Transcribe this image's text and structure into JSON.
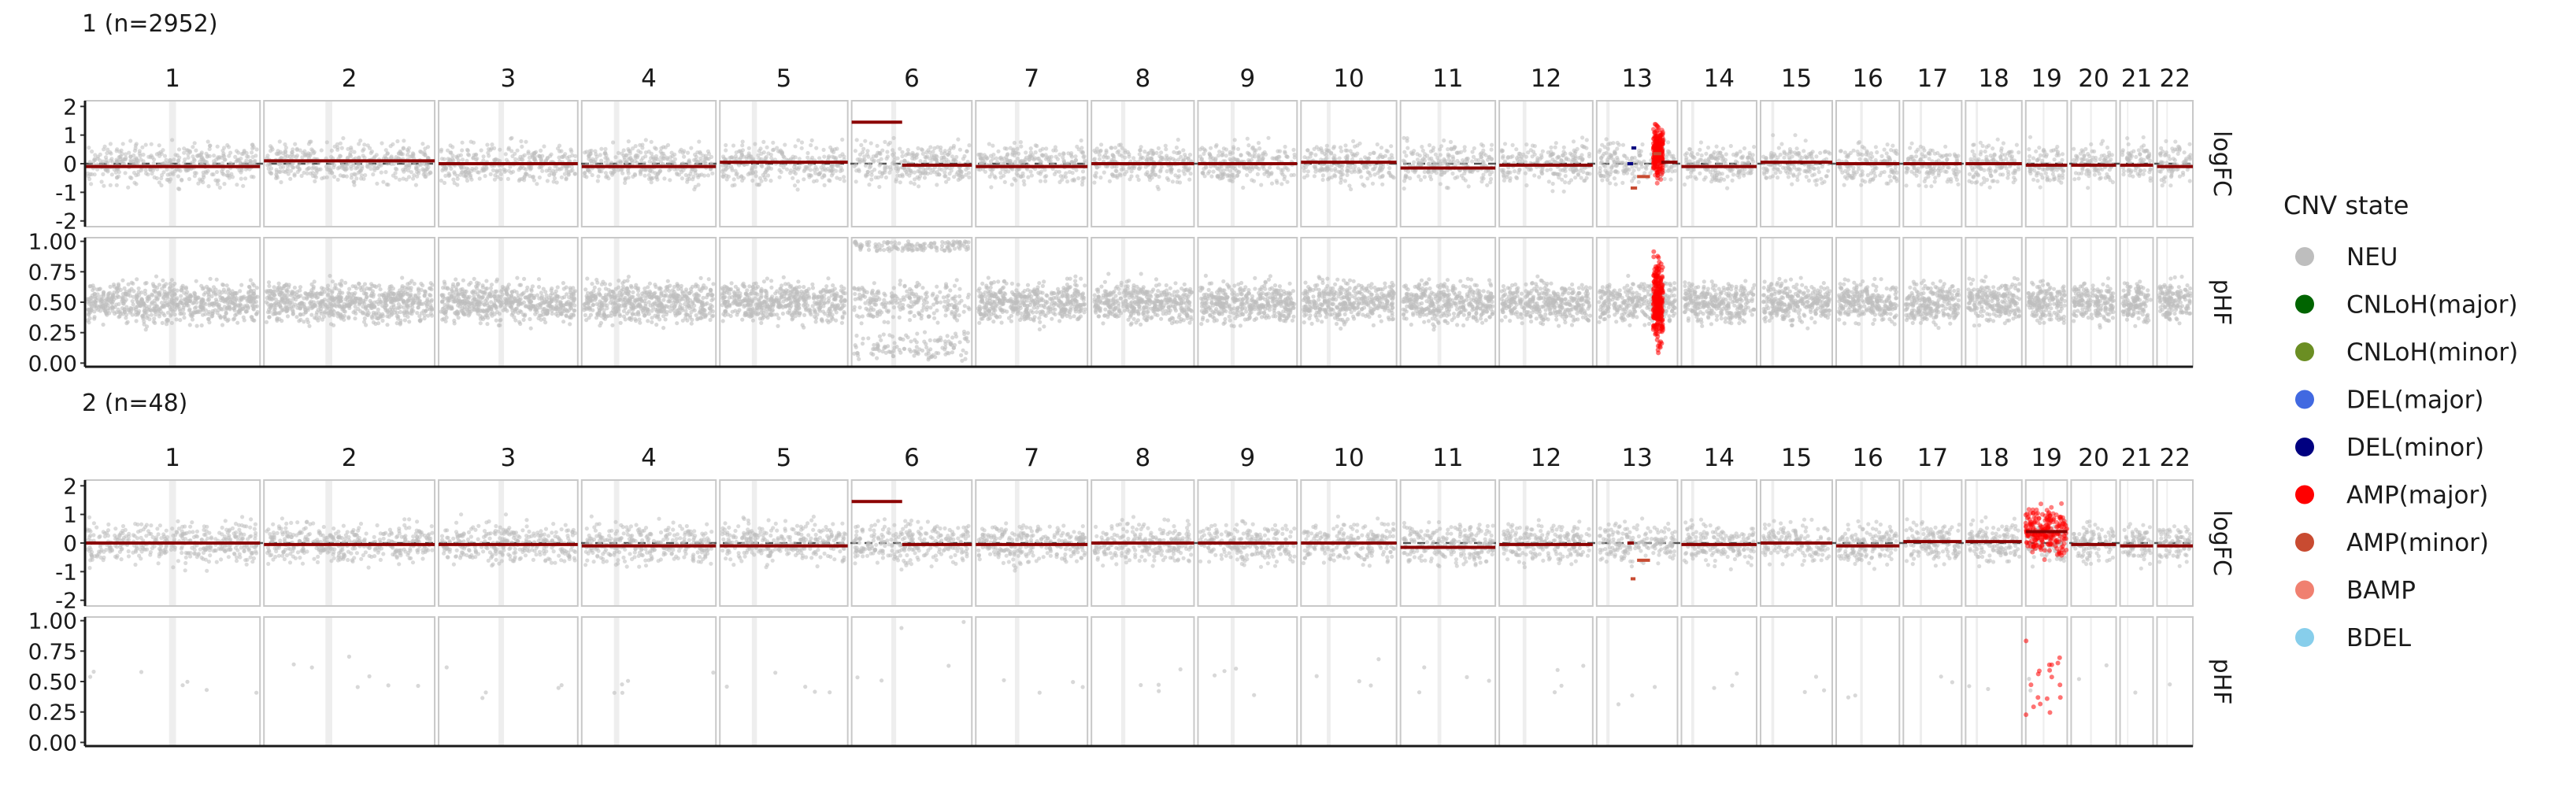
{
  "chart_data": {
    "type": "scatter",
    "description_free": true,
    "chromosomes": [
      "1",
      "2",
      "3",
      "4",
      "5",
      "6",
      "7",
      "8",
      "9",
      "10",
      "11",
      "12",
      "13",
      "14",
      "15",
      "16",
      "17",
      "18",
      "19",
      "20",
      "21",
      "22"
    ],
    "chromosome_widths": [
      249,
      243,
      198,
      191,
      182,
      171,
      159,
      146,
      141,
      136,
      135,
      133,
      115,
      107,
      102,
      90,
      83,
      80,
      59,
      64,
      47,
      51
    ],
    "strip_labels": [
      "logFC",
      "pHF"
    ],
    "logfc_axis": {
      "ticks": [
        -2,
        -1,
        0,
        1,
        2
      ],
      "labels": [
        "-2",
        "-1",
        "0",
        "1",
        "2"
      ],
      "ylim": [
        -2.2,
        2.2
      ]
    },
    "phf_axis": {
      "ticks": [
        0,
        0.25,
        0.5,
        0.75,
        1
      ],
      "labels": [
        "0.00",
        "0.25",
        "0.50",
        "0.75",
        "1.00"
      ],
      "ylim": [
        -0.03,
        1.03
      ]
    },
    "legend": {
      "title": "CNV state",
      "position": "right",
      "items": [
        {
          "label": "NEU",
          "color": "#bebebe"
        },
        {
          "label": "CNLoH(major)",
          "color": "#006400"
        },
        {
          "label": "CNLoH(minor)",
          "color": "#6b8e23"
        },
        {
          "label": "DEL(major)",
          "color": "#4169e1"
        },
        {
          "label": "DEL(minor)",
          "color": "#000080"
        },
        {
          "label": "AMP(major)",
          "color": "#ff0000"
        },
        {
          "label": "AMP(minor)",
          "color": "#c84b31"
        },
        {
          "label": "BAMP",
          "color": "#f08070"
        },
        {
          "label": "BDEL",
          "color": "#87ceeb"
        }
      ]
    },
    "panels": [
      {
        "title": "1 (n=2952)",
        "segments": [
          {
            "chr": "1",
            "start": 0,
            "end": 1,
            "value": -0.1,
            "color": "#8b0000"
          },
          {
            "chr": "2",
            "start": 0,
            "end": 1,
            "value": 0.1,
            "color": "#8b0000"
          },
          {
            "chr": "3",
            "start": 0,
            "end": 1,
            "value": 0.0,
            "color": "#8b0000"
          },
          {
            "chr": "4",
            "start": 0,
            "end": 1,
            "value": -0.1,
            "color": "#8b0000"
          },
          {
            "chr": "5",
            "start": 0,
            "end": 1,
            "value": 0.05,
            "color": "#8b0000"
          },
          {
            "chr": "6",
            "start": 0,
            "end": 0.42,
            "value": 1.45,
            "color": "#8b0000"
          },
          {
            "chr": "6",
            "start": 0.42,
            "end": 1,
            "value": -0.05,
            "color": "#8b0000"
          },
          {
            "chr": "7",
            "start": 0,
            "end": 1,
            "value": -0.1,
            "color": "#8b0000"
          },
          {
            "chr": "8",
            "start": 0,
            "end": 1,
            "value": 0.0,
            "color": "#8b0000"
          },
          {
            "chr": "9",
            "start": 0,
            "end": 1,
            "value": 0.0,
            "color": "#8b0000"
          },
          {
            "chr": "10",
            "start": 0,
            "end": 1,
            "value": 0.05,
            "color": "#8b0000"
          },
          {
            "chr": "11",
            "start": 0,
            "end": 1,
            "value": -0.15,
            "color": "#8b0000"
          },
          {
            "chr": "12",
            "start": 0,
            "end": 1,
            "value": -0.05,
            "color": "#8b0000"
          },
          {
            "chr": "13",
            "start": 0.38,
            "end": 0.45,
            "value": 0.0,
            "color": "#000080"
          },
          {
            "chr": "13",
            "start": 0.43,
            "end": 0.49,
            "value": 0.55,
            "color": "#000080"
          },
          {
            "chr": "13",
            "start": 0.42,
            "end": 0.5,
            "value": -0.85,
            "color": "#c84b31"
          },
          {
            "chr": "13",
            "start": 0.5,
            "end": 0.66,
            "value": -0.45,
            "color": "#c84b31"
          },
          {
            "chr": "13",
            "start": 0.7,
            "end": 0.8,
            "value": 0.35,
            "color": "#c84b31"
          },
          {
            "chr": "13",
            "start": 0.8,
            "end": 1,
            "value": 0.05,
            "color": "#8b0000"
          },
          {
            "chr": "14",
            "start": 0,
            "end": 1,
            "value": -0.1,
            "color": "#8b0000"
          },
          {
            "chr": "15",
            "start": 0,
            "end": 1,
            "value": 0.05,
            "color": "#8b0000"
          },
          {
            "chr": "16",
            "start": 0,
            "end": 1,
            "value": 0.0,
            "color": "#8b0000"
          },
          {
            "chr": "17",
            "start": 0,
            "end": 1,
            "value": 0.0,
            "color": "#8b0000"
          },
          {
            "chr": "18",
            "start": 0,
            "end": 1,
            "value": 0.0,
            "color": "#8b0000"
          },
          {
            "chr": "19",
            "start": 0,
            "end": 1,
            "value": -0.05,
            "color": "#8b0000"
          },
          {
            "chr": "20",
            "start": 0,
            "end": 1,
            "value": -0.05,
            "color": "#8b0000"
          },
          {
            "chr": "21",
            "start": 0,
            "end": 1,
            "value": -0.05,
            "color": "#8b0000"
          },
          {
            "chr": "22",
            "start": 0,
            "end": 1,
            "value": -0.1,
            "color": "#8b0000"
          }
        ],
        "amp_cluster": {
          "chr": "13",
          "start": 0.7,
          "end": 0.82,
          "color": "#ff0000"
        },
        "phf_density": "high",
        "loh_chr": "6"
      },
      {
        "title": "2 (n=48)",
        "segments": [
          {
            "chr": "1",
            "start": 0,
            "end": 1,
            "value": 0.0,
            "color": "#8b0000"
          },
          {
            "chr": "2",
            "start": 0,
            "end": 1,
            "value": -0.05,
            "color": "#8b0000"
          },
          {
            "chr": "3",
            "start": 0,
            "end": 1,
            "value": -0.05,
            "color": "#8b0000"
          },
          {
            "chr": "4",
            "start": 0,
            "end": 1,
            "value": -0.1,
            "color": "#8b0000"
          },
          {
            "chr": "5",
            "start": 0,
            "end": 1,
            "value": -0.1,
            "color": "#8b0000"
          },
          {
            "chr": "6",
            "start": 0,
            "end": 0.42,
            "value": 1.45,
            "color": "#8b0000"
          },
          {
            "chr": "6",
            "start": 0.42,
            "end": 1,
            "value": -0.05,
            "color": "#8b0000"
          },
          {
            "chr": "7",
            "start": 0,
            "end": 1,
            "value": -0.05,
            "color": "#8b0000"
          },
          {
            "chr": "8",
            "start": 0,
            "end": 1,
            "value": 0.0,
            "color": "#8b0000"
          },
          {
            "chr": "9",
            "start": 0,
            "end": 1,
            "value": 0.0,
            "color": "#8b0000"
          },
          {
            "chr": "10",
            "start": 0,
            "end": 1,
            "value": 0.0,
            "color": "#8b0000"
          },
          {
            "chr": "11",
            "start": 0,
            "end": 1,
            "value": -0.15,
            "color": "#8b0000"
          },
          {
            "chr": "12",
            "start": 0,
            "end": 1,
            "value": -0.05,
            "color": "#8b0000"
          },
          {
            "chr": "13",
            "start": 0.38,
            "end": 0.46,
            "value": 0.0,
            "color": "#8b0000"
          },
          {
            "chr": "13",
            "start": 0.42,
            "end": 0.48,
            "value": -1.25,
            "color": "#c84b31"
          },
          {
            "chr": "13",
            "start": 0.5,
            "end": 0.66,
            "value": -0.6,
            "color": "#c84b31"
          },
          {
            "chr": "14",
            "start": 0,
            "end": 1,
            "value": -0.05,
            "color": "#8b0000"
          },
          {
            "chr": "15",
            "start": 0,
            "end": 1,
            "value": 0.0,
            "color": "#8b0000"
          },
          {
            "chr": "16",
            "start": 0,
            "end": 1,
            "value": -0.1,
            "color": "#8b0000"
          },
          {
            "chr": "17",
            "start": 0,
            "end": 1,
            "value": 0.05,
            "color": "#8b0000"
          },
          {
            "chr": "18",
            "start": 0,
            "end": 1,
            "value": 0.05,
            "color": "#8b0000"
          },
          {
            "chr": "19",
            "start": 0,
            "end": 1,
            "value": 0.4,
            "color": "#8b0000"
          },
          {
            "chr": "20",
            "start": 0,
            "end": 1,
            "value": -0.05,
            "color": "#8b0000"
          },
          {
            "chr": "21",
            "start": 0,
            "end": 1,
            "value": -0.1,
            "color": "#8b0000"
          },
          {
            "chr": "22",
            "start": 0,
            "end": 1,
            "value": -0.1,
            "color": "#8b0000"
          }
        ],
        "amp_cluster": {
          "chr": "19",
          "start": 0,
          "end": 1,
          "color": "#ff0000"
        },
        "phf_density": "low",
        "loh_chr": "6"
      }
    ]
  }
}
